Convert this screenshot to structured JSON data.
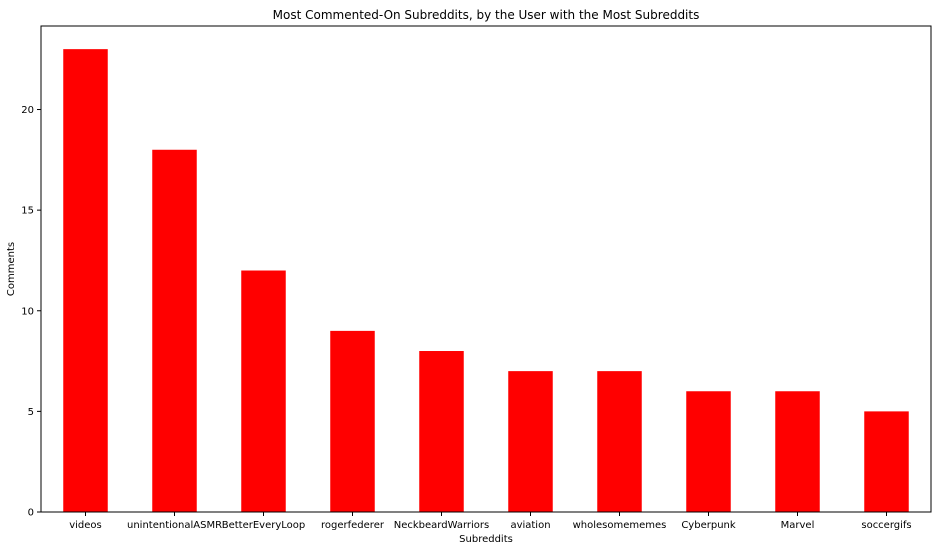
{
  "chart_data": {
    "type": "bar",
    "title": "Most Commented-On Subreddits, by the User with the Most Subreddits",
    "xlabel": "Subreddits",
    "ylabel": "Comments",
    "categories": [
      "videos",
      "unintentionalASMR",
      "BetterEveryLoop",
      "rogerfederer",
      "NeckbeardWarriors",
      "aviation",
      "wholesomememes",
      "Cyberpunk",
      "Marvel",
      "soccergifs"
    ],
    "values": [
      23,
      18,
      12,
      9,
      8,
      7,
      7,
      6,
      6,
      5
    ],
    "ylim": [
      0,
      24.15
    ],
    "yticks": [
      0,
      5,
      10,
      15,
      20
    ],
    "grid": false,
    "legend": "none",
    "colors": {
      "bar": "#ff0000",
      "axis": "#000000",
      "background": "#ffffff"
    }
  }
}
